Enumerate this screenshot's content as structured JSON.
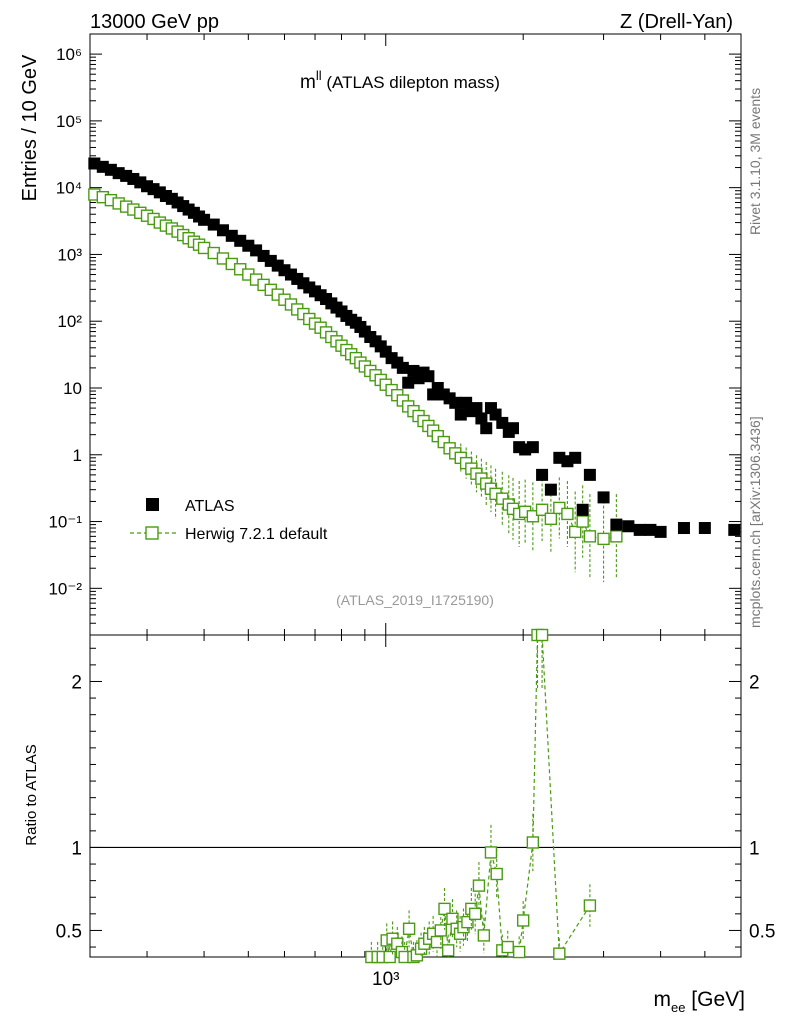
{
  "header": {
    "left": "13000 GeV pp",
    "right": "Z (Drell-Yan)"
  },
  "side": {
    "top": "Rivet 3.1.10,  3M events",
    "bottom": "mcplots.cern.ch [arXiv:1306.3436]"
  },
  "chart_data": [
    {
      "type": "scatter",
      "title_main": "m",
      "title_sup": "ll",
      "title_rest": " (ATLAS dilepton mass)",
      "watermark": "(ATLAS_2019_I1725190)",
      "ylabel": "Entries / 10 GeV",
      "xscale": "log",
      "yscale": "log",
      "xlim": [
        225,
        6000
      ],
      "ylim": [
        0.002,
        2000000
      ],
      "ytick_labels": [
        "10⁻²",
        "10⁻¹",
        "1",
        "10",
        "10²",
        "10³",
        "10⁴",
        "10⁵",
        "10⁶"
      ],
      "legend_position": "bottom-left",
      "series": [
        {
          "name": "ATLAS",
          "color": "#000000",
          "x": [
            230,
            240,
            250,
            260,
            270,
            280,
            290,
            300,
            310,
            320,
            330,
            340,
            350,
            360,
            370,
            380,
            390,
            400,
            420,
            440,
            460,
            480,
            500,
            520,
            540,
            560,
            580,
            600,
            620,
            640,
            660,
            680,
            700,
            720,
            740,
            760,
            780,
            800,
            820,
            840,
            860,
            880,
            900,
            925,
            950,
            975,
            1000,
            1030,
            1060,
            1090,
            1120,
            1150,
            1180,
            1210,
            1240,
            1270,
            1300,
            1340,
            1380,
            1420,
            1460,
            1500,
            1540,
            1580,
            1620,
            1660,
            1700,
            1740,
            1800,
            1860,
            1900,
            1960,
            2020,
            2100,
            2200,
            2300,
            2400,
            2500,
            2600,
            2700,
            2800,
            3000,
            3200,
            3400,
            3600,
            3800,
            4000,
            4500,
            5000,
            5800
          ],
          "y": [
            23000,
            20500,
            18500,
            16500,
            15000,
            13500,
            12000,
            10500,
            9500,
            8500,
            7500,
            6800,
            6000,
            5300,
            4700,
            4200,
            3700,
            3300,
            2800,
            2300,
            1900,
            1600,
            1350,
            1150,
            950,
            800,
            680,
            580,
            500,
            430,
            370,
            320,
            280,
            245,
            215,
            185,
            160,
            140,
            120,
            105,
            95,
            82,
            70,
            58,
            50,
            42,
            35,
            28,
            24,
            20,
            12,
            18,
            14,
            17,
            15,
            8,
            10,
            8,
            7,
            6,
            4,
            6,
            4.5,
            5,
            3.5,
            2.5,
            5,
            4,
            3,
            2.2,
            2.5,
            1.3,
            1.2,
            1.3,
            0.5,
            0.3,
            0.9,
            0.8,
            0.9,
            0.15,
            0.5,
            0.23,
            0.09,
            0.085,
            0.075,
            0.075,
            0.07,
            0.08,
            0.08,
            0.075
          ]
        },
        {
          "name": "Herwig 7.2.1 default",
          "color": "#4a9b13",
          "x": [
            230,
            240,
            250,
            260,
            270,
            280,
            290,
            300,
            310,
            320,
            330,
            340,
            350,
            360,
            370,
            380,
            390,
            400,
            420,
            440,
            460,
            480,
            500,
            520,
            540,
            560,
            580,
            600,
            620,
            640,
            660,
            680,
            700,
            720,
            740,
            760,
            780,
            800,
            820,
            840,
            860,
            880,
            900,
            925,
            950,
            975,
            1000,
            1030,
            1060,
            1090,
            1120,
            1150,
            1180,
            1210,
            1240,
            1270,
            1300,
            1340,
            1380,
            1420,
            1460,
            1500,
            1540,
            1580,
            1620,
            1660,
            1700,
            1740,
            1800,
            1860,
            1900,
            1960,
            2020,
            2100,
            2200,
            2300,
            2400,
            2500,
            2600,
            2700,
            2800,
            3000,
            3200
          ],
          "y": [
            7900,
            7200,
            6500,
            5800,
            5200,
            4700,
            4200,
            3800,
            3400,
            3000,
            2700,
            2450,
            2200,
            1950,
            1750,
            1550,
            1400,
            1250,
            1050,
            870,
            720,
            600,
            500,
            420,
            350,
            295,
            250,
            210,
            178,
            150,
            128,
            108,
            92,
            80,
            68,
            58,
            50,
            43,
            37,
            32,
            28,
            24,
            21,
            18,
            15.5,
            13.2,
            11.2,
            9.3,
            7.8,
            6.5,
            5.3,
            4.5,
            3.8,
            3.2,
            2.7,
            2.3,
            1.9,
            1.55,
            1.25,
            1.05,
            0.9,
            0.75,
            0.62,
            0.52,
            0.44,
            0.37,
            0.31,
            0.26,
            0.22,
            0.18,
            0.155,
            0.13,
            0.14,
            0.12,
            0.15,
            0.11,
            0.16,
            0.13,
            0.07,
            0.1,
            0.06,
            0.055,
            0.06
          ]
        }
      ]
    },
    {
      "type": "scatter",
      "ylabel": "Ratio to ATLAS",
      "xlabel_main": "m",
      "xlabel_sub": "ee",
      "xlabel_rest": " [GeV]",
      "xscale": "log",
      "xlim": [
        225,
        6000
      ],
      "ylim": [
        0.34,
        2.28
      ],
      "yticks": [
        0.5,
        1,
        2
      ],
      "ytick_labels": [
        "0.5",
        "1",
        "2"
      ],
      "xtick_labels": [
        "10³"
      ],
      "reference_line": 1,
      "series": [
        {
          "name": "Herwig 7.2.1 default",
          "color": "#4a9b13",
          "x": [
            930,
            960,
            985,
            1005,
            1020,
            1035,
            1060,
            1085,
            1100,
            1125,
            1150,
            1170,
            1195,
            1215,
            1245,
            1270,
            1295,
            1320,
            1345,
            1370,
            1400,
            1430,
            1455,
            1480,
            1510,
            1540,
            1570,
            1600,
            1640,
            1700,
            1750,
            1800,
            1850,
            1960,
            2000,
            2100,
            2150,
            2200,
            2400,
            2800
          ],
          "y": [
            0.33,
            0.33,
            0.34,
            0.44,
            0.34,
            0.45,
            0.42,
            0.37,
            0.33,
            0.51,
            0.33,
            0.35,
            0.39,
            0.42,
            0.45,
            0.48,
            0.43,
            0.5,
            0.63,
            0.38,
            0.57,
            0.51,
            0.48,
            0.52,
            0.55,
            0.63,
            0.6,
            0.77,
            0.47,
            0.97,
            0.84,
            0.38,
            0.4,
            0.37,
            0.56,
            1.03,
            2.3,
            2.35,
            0.36,
            0.65
          ]
        }
      ]
    }
  ]
}
